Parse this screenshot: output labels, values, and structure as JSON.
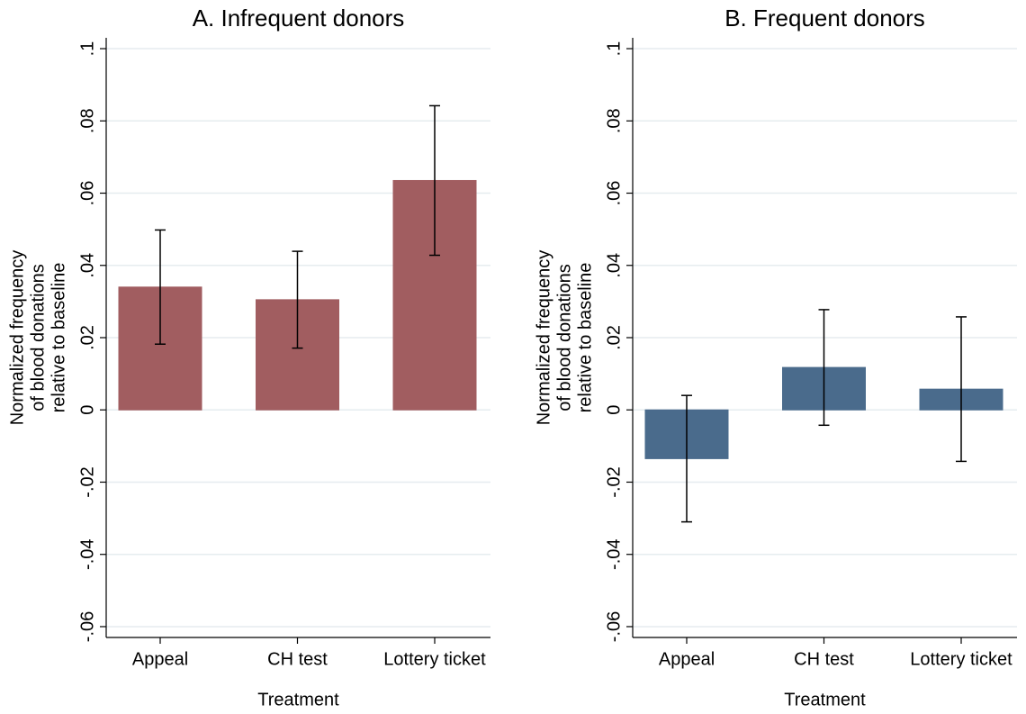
{
  "chart_data": [
    {
      "type": "bar",
      "title": "A. Infrequent donors",
      "categories": [
        "Appeal",
        "CH test",
        "Lottery ticket"
      ],
      "values": [
        0.034,
        0.0305,
        0.0635
      ],
      "errors": [
        0.0158,
        0.0134,
        0.0207
      ],
      "color": "#a15d60",
      "ylim": [
        -0.063,
        0.103
      ],
      "yticks": [
        {
          "value": -0.06,
          "label": "-.06"
        },
        {
          "value": -0.04,
          "label": "-.04"
        },
        {
          "value": -0.02,
          "label": "-.02"
        },
        0,
        {
          "value": 0.02,
          "label": ".02"
        },
        {
          "value": 0.04,
          "label": ".04"
        },
        {
          "value": 0.06,
          "label": ".06"
        },
        {
          "value": 0.08,
          "label": ".08"
        },
        {
          "value": 0.1,
          "label": ".1"
        }
      ],
      "grid": true,
      "ylabel": [
        "Normalized frequency",
        "of blood donations",
        "relative to baseline"
      ],
      "xlabel": "Treatment"
    },
    {
      "type": "bar",
      "title": "B. Frequent donors",
      "categories": [
        "Appeal",
        "CH test",
        "Lottery ticket"
      ],
      "values": [
        -0.0135,
        0.01175,
        0.00575
      ],
      "errors": [
        0.0175,
        0.016,
        0.02
      ],
      "color": "#4a6b8c",
      "ylim": [
        -0.063,
        0.103
      ],
      "yticks": [
        {
          "value": -0.06,
          "label": "-.06"
        },
        {
          "value": -0.04,
          "label": "-.04"
        },
        {
          "value": -0.02,
          "label": "-.02"
        },
        0,
        {
          "value": 0.02,
          "label": ".02"
        },
        {
          "value": 0.04,
          "label": ".04"
        },
        {
          "value": 0.06,
          "label": ".06"
        },
        {
          "value": 0.08,
          "label": ".08"
        },
        {
          "value": 0.1,
          "label": ".1"
        }
      ],
      "grid": true,
      "ylabel": [
        "Normalized frequency",
        "of blood donations",
        "relative to baseline"
      ],
      "xlabel": "Treatment"
    }
  ]
}
